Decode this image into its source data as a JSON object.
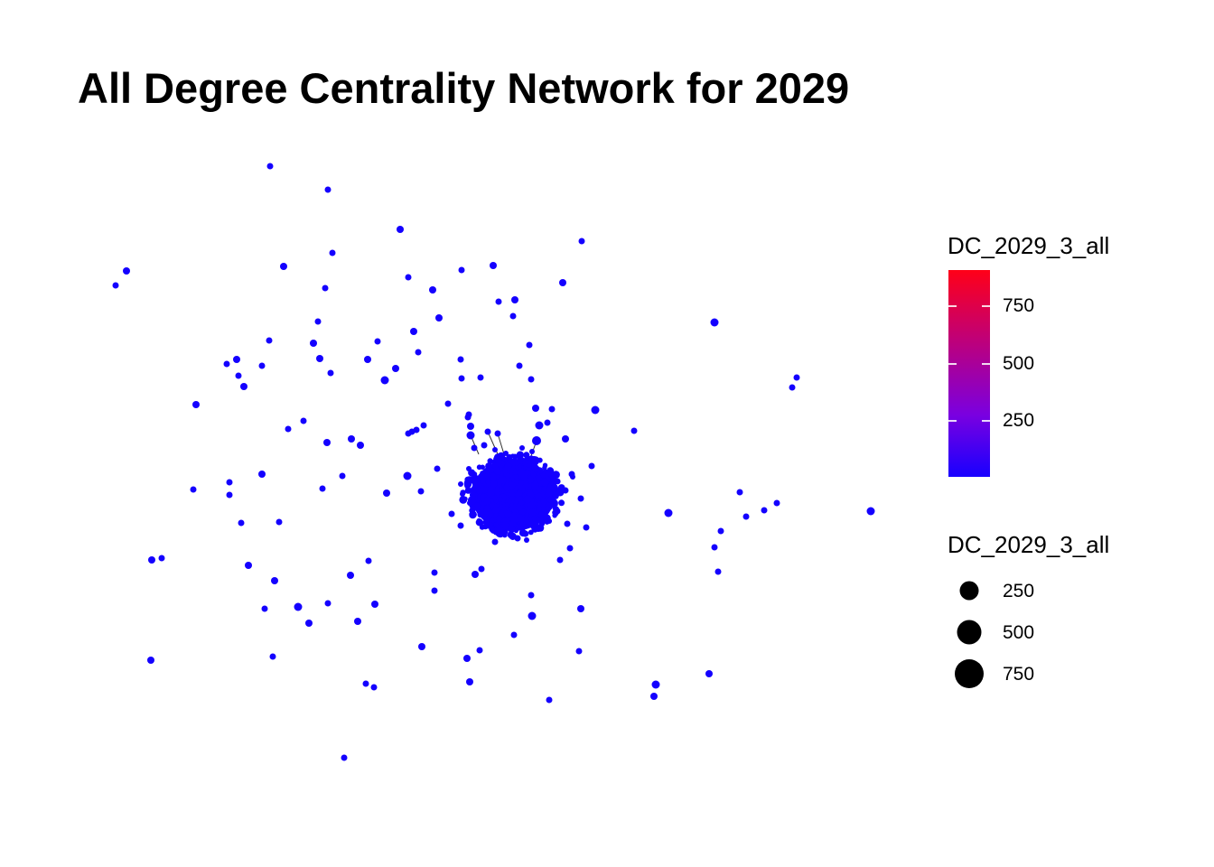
{
  "title": "All Degree Centrality Network for 2029",
  "colors": {
    "node": "#1400ff",
    "edge": "#333333",
    "gradient_high": "#ff0018",
    "gradient_mid": "#7a00e0",
    "gradient_low": "#1800ff"
  },
  "color_legend": {
    "title": "DC_2029_3_all",
    "breaks": [
      "750",
      "500",
      "250"
    ]
  },
  "size_legend": {
    "title": "DC_2029_3_all",
    "breaks": [
      "250",
      "500",
      "750"
    ]
  }
}
